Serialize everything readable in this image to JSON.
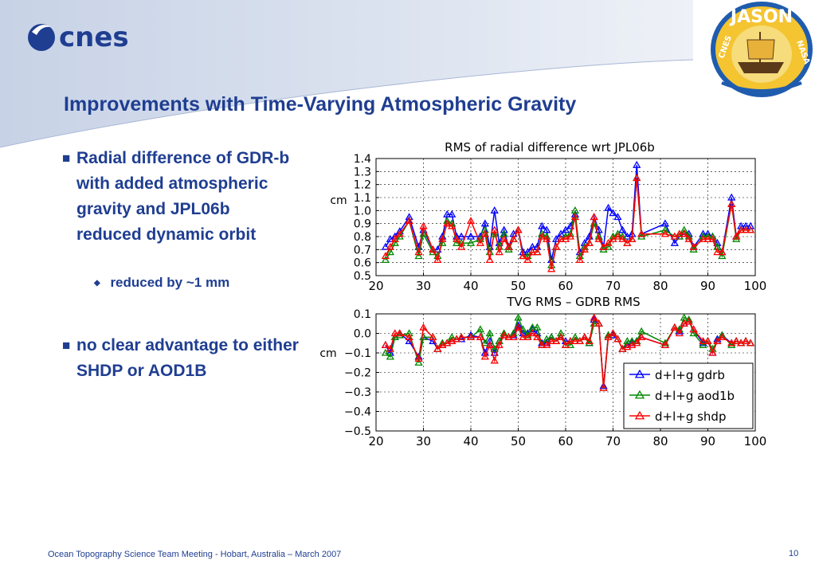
{
  "header": {
    "title": "Improvements with Time-Varying Atmospheric Gravity",
    "logo_left_text": "cnes",
    "logo_right_text": "JASON",
    "logo_right_left_text": "CNES",
    "logo_right_right_text": "NASA"
  },
  "bullets": [
    {
      "text": "Radial difference of GDR-b with added atmospheric gravity and JPL06b reduced dynamic orbit"
    },
    {
      "text": "no clear advantage to either SHDP or AOD1B"
    }
  ],
  "sub_bullet": {
    "text": "reduced by ~1 mm"
  },
  "footer": {
    "text": "Ocean Topography Science Team Meeting - Hobart, Australia – March 2007",
    "page": "10"
  },
  "colors": {
    "title": "#1f3e91",
    "gdrb": "#0000ff",
    "aod1b": "#008800",
    "shdp": "#ff0000"
  },
  "chart_data": [
    {
      "type": "line",
      "title": "RMS of radial difference wrt JPL06b",
      "xlabel": "",
      "ylabel": "cm",
      "xlim": [
        20,
        100
      ],
      "ylim": [
        0.5,
        1.4
      ],
      "xticks": [
        20,
        30,
        40,
        50,
        60,
        70,
        80,
        90,
        100
      ],
      "yticks": [
        0.5,
        0.6,
        0.7,
        0.8,
        0.9,
        1.0,
        1.1,
        1.2,
        1.3,
        1.4
      ],
      "ytick_labels": [
        "0.5",
        "0.6",
        "0.7",
        "0.8",
        "0.9",
        "1.0",
        "1.1",
        "1.2",
        "1.3",
        "1.4"
      ],
      "grid": true,
      "series": [
        {
          "name": "d+l+g gdrb",
          "color": "#0000ff",
          "x": [
            22,
            23,
            24,
            25,
            27,
            29,
            30,
            32,
            33,
            34,
            35,
            36,
            37,
            38,
            40,
            42,
            43,
            44,
            45,
            46,
            47,
            48,
            49,
            50,
            51,
            52,
            53,
            54,
            55,
            56,
            57,
            58,
            59,
            60,
            61,
            62,
            63,
            64,
            65,
            66,
            67,
            68,
            69,
            70,
            71,
            72,
            73,
            74,
            75,
            76,
            81,
            83,
            84,
            85,
            86,
            87,
            89,
            90,
            91,
            92,
            93,
            95,
            96,
            97,
            98,
            99
          ],
          "y": [
            0.72,
            0.78,
            0.8,
            0.84,
            0.95,
            0.72,
            0.85,
            0.7,
            0.7,
            0.8,
            0.97,
            0.97,
            0.8,
            0.8,
            0.8,
            0.8,
            0.9,
            0.72,
            1.0,
            0.75,
            0.85,
            0.72,
            0.82,
            0.85,
            0.68,
            0.68,
            0.72,
            0.72,
            0.88,
            0.85,
            0.62,
            0.78,
            0.82,
            0.85,
            0.88,
            0.97,
            0.68,
            0.75,
            0.8,
            0.95,
            0.85,
            0.72,
            1.02,
            0.98,
            0.95,
            0.85,
            0.8,
            0.82,
            1.35,
            0.82,
            0.9,
            0.75,
            0.8,
            0.82,
            0.82,
            0.72,
            0.82,
            0.82,
            0.8,
            0.75,
            0.68,
            1.1,
            0.8,
            0.88,
            0.88,
            0.88
          ]
        },
        {
          "name": "d+l+g aod1b",
          "color": "#008800",
          "x": [
            22,
            23,
            24,
            25,
            27,
            29,
            30,
            32,
            33,
            34,
            35,
            36,
            37,
            38,
            40,
            42,
            43,
            44,
            45,
            46,
            47,
            48,
            49,
            50,
            51,
            52,
            53,
            54,
            55,
            56,
            57,
            58,
            59,
            60,
            61,
            62,
            63,
            64,
            65,
            66,
            67,
            68,
            69,
            70,
            71,
            72,
            73,
            74,
            75,
            76,
            81,
            83,
            84,
            85,
            86,
            87,
            89,
            90,
            91,
            92,
            93,
            95,
            96,
            97,
            98,
            99
          ],
          "y": [
            0.62,
            0.68,
            0.75,
            0.8,
            0.92,
            0.65,
            0.82,
            0.68,
            0.65,
            0.75,
            0.92,
            0.9,
            0.75,
            0.75,
            0.75,
            0.78,
            0.85,
            0.68,
            0.82,
            0.72,
            0.82,
            0.7,
            0.78,
            0.85,
            0.65,
            0.65,
            0.68,
            0.68,
            0.82,
            0.8,
            0.58,
            0.72,
            0.78,
            0.8,
            0.82,
            1.0,
            0.65,
            0.72,
            0.75,
            0.9,
            0.8,
            0.7,
            0.72,
            0.8,
            0.82,
            0.8,
            0.75,
            0.78,
            1.25,
            0.8,
            0.85,
            0.8,
            0.8,
            0.85,
            0.8,
            0.7,
            0.8,
            0.8,
            0.8,
            0.72,
            0.65,
            1.05,
            0.78,
            0.85,
            0.85,
            0.85
          ]
        },
        {
          "name": "d+l+g shdp",
          "color": "#ff0000",
          "x": [
            22,
            23,
            24,
            25,
            27,
            29,
            30,
            32,
            33,
            34,
            35,
            36,
            37,
            38,
            40,
            42,
            43,
            44,
            45,
            46,
            47,
            48,
            49,
            50,
            51,
            52,
            53,
            54,
            55,
            56,
            57,
            58,
            59,
            60,
            61,
            62,
            63,
            64,
            65,
            66,
            67,
            68,
            69,
            70,
            71,
            72,
            73,
            74,
            75,
            76,
            81,
            83,
            84,
            85,
            86,
            87,
            89,
            90,
            91,
            92,
            93,
            95,
            96,
            97,
            98,
            99
          ],
          "y": [
            0.65,
            0.72,
            0.78,
            0.82,
            0.92,
            0.68,
            0.88,
            0.7,
            0.62,
            0.78,
            0.9,
            0.88,
            0.78,
            0.72,
            0.92,
            0.75,
            0.82,
            0.62,
            0.85,
            0.68,
            0.78,
            0.72,
            0.78,
            0.85,
            0.65,
            0.62,
            0.68,
            0.68,
            0.8,
            0.78,
            0.55,
            0.72,
            0.78,
            0.78,
            0.8,
            0.95,
            0.62,
            0.7,
            0.75,
            0.95,
            0.78,
            0.72,
            0.75,
            0.78,
            0.8,
            0.78,
            0.75,
            0.78,
            1.25,
            0.82,
            0.82,
            0.8,
            0.82,
            0.82,
            0.78,
            0.72,
            0.78,
            0.78,
            0.78,
            0.68,
            0.68,
            1.05,
            0.8,
            0.85,
            0.85,
            0.85
          ]
        }
      ]
    },
    {
      "type": "line",
      "title": "TVG RMS – GDRB RMS",
      "xlabel": "",
      "ylabel": "cm",
      "xlim": [
        20,
        100
      ],
      "ylim": [
        -0.5,
        0.1
      ],
      "xticks": [
        20,
        30,
        40,
        50,
        60,
        70,
        80,
        90,
        100
      ],
      "yticks": [
        -0.5,
        -0.4,
        -0.3,
        -0.2,
        -0.1,
        0.0,
        0.1
      ],
      "ytick_labels": [
        "−0.5",
        "−0.4",
        "−0.3",
        "−0.2",
        "−0.1",
        "0.0",
        "0.1"
      ],
      "grid": true,
      "legend": "bottom-right",
      "series": [
        {
          "name": "d+l+g gdrb",
          "color": "#0000ff",
          "x": [
            22,
            23,
            24,
            25,
            27,
            29,
            30,
            32,
            33,
            34,
            35,
            36,
            37,
            38,
            40,
            42,
            43,
            44,
            45,
            46,
            47,
            48,
            49,
            50,
            51,
            52,
            53,
            54,
            55,
            56,
            57,
            58,
            59,
            60,
            61,
            62,
            63,
            64,
            65,
            66,
            67,
            68,
            69,
            70,
            71,
            72,
            73,
            74,
            75,
            76,
            81,
            83,
            84,
            85,
            86,
            87,
            89,
            90,
            91,
            92,
            93,
            95,
            96,
            97,
            98,
            99
          ],
          "y": [
            -0.06,
            -0.1,
            -0.02,
            0.0,
            -0.04,
            -0.12,
            -0.02,
            -0.04,
            -0.08,
            -0.06,
            -0.05,
            -0.04,
            -0.03,
            -0.03,
            -0.01,
            -0.02,
            -0.1,
            -0.04,
            -0.1,
            -0.04,
            -0.01,
            -0.02,
            -0.01,
            0.04,
            0.0,
            0.0,
            0.02,
            0.0,
            -0.05,
            -0.05,
            -0.02,
            -0.04,
            -0.02,
            -0.04,
            -0.04,
            -0.04,
            -0.04,
            -0.02,
            -0.05,
            0.07,
            0.05,
            -0.27,
            -0.01,
            -0.01,
            -0.03,
            -0.08,
            -0.06,
            -0.05,
            -0.04,
            -0.02,
            -0.06,
            0.03,
            0.01,
            0.05,
            0.06,
            0.02,
            -0.05,
            -0.04,
            -0.1,
            -0.03,
            -0.01,
            -0.05,
            -0.04,
            -0.05,
            -0.04,
            -0.05
          ]
        },
        {
          "name": "d+l+g aod1b",
          "color": "#008800",
          "x": [
            22,
            23,
            24,
            25,
            27,
            29,
            30,
            32,
            33,
            34,
            35,
            36,
            37,
            38,
            40,
            42,
            43,
            44,
            45,
            46,
            47,
            48,
            49,
            50,
            51,
            52,
            53,
            54,
            55,
            56,
            57,
            58,
            59,
            60,
            61,
            62,
            63,
            64,
            65,
            66,
            67,
            68,
            69,
            70,
            71,
            72,
            73,
            74,
            75,
            76,
            81,
            83,
            84,
            85,
            86,
            87,
            89,
            90,
            91,
            92,
            93,
            95,
            96,
            97,
            98,
            99
          ],
          "y": [
            -0.1,
            -0.12,
            -0.02,
            -0.01,
            0.0,
            -0.15,
            -0.02,
            -0.02,
            -0.08,
            -0.05,
            -0.05,
            -0.02,
            -0.03,
            -0.02,
            -0.02,
            0.02,
            -0.05,
            0.0,
            -0.08,
            -0.04,
            0.0,
            -0.02,
            0.0,
            0.08,
            0.02,
            -0.01,
            0.03,
            0.03,
            -0.06,
            -0.03,
            -0.02,
            -0.04,
            0.0,
            -0.06,
            -0.06,
            -0.02,
            -0.04,
            -0.02,
            -0.05,
            0.05,
            0.05,
            -0.28,
            -0.01,
            0.0,
            -0.03,
            -0.08,
            -0.04,
            -0.04,
            -0.04,
            0.01,
            -0.05,
            0.03,
            0.02,
            0.08,
            0.07,
            0.0,
            -0.06,
            -0.04,
            -0.08,
            -0.04,
            -0.01,
            -0.06,
            -0.04,
            -0.05,
            -0.04,
            -0.05
          ]
        },
        {
          "name": "d+l+g shdp",
          "color": "#ff0000",
          "x": [
            22,
            23,
            24,
            25,
            27,
            29,
            30,
            32,
            33,
            34,
            35,
            36,
            37,
            38,
            40,
            42,
            43,
            44,
            45,
            46,
            47,
            48,
            49,
            50,
            51,
            52,
            53,
            54,
            55,
            56,
            57,
            58,
            59,
            60,
            61,
            62,
            63,
            64,
            65,
            66,
            67,
            68,
            69,
            70,
            71,
            72,
            73,
            74,
            75,
            76,
            81,
            83,
            84,
            85,
            86,
            87,
            89,
            90,
            91,
            92,
            93,
            95,
            96,
            97,
            98,
            99
          ],
          "y": [
            -0.06,
            -0.08,
            0.0,
            0.0,
            -0.02,
            -0.13,
            0.03,
            -0.02,
            -0.08,
            -0.06,
            -0.05,
            -0.04,
            -0.03,
            -0.02,
            -0.02,
            -0.02,
            -0.12,
            -0.06,
            -0.14,
            -0.06,
            -0.01,
            -0.02,
            -0.02,
            0.03,
            -0.02,
            -0.02,
            0.0,
            -0.02,
            -0.06,
            -0.06,
            -0.04,
            -0.04,
            -0.02,
            -0.06,
            -0.04,
            -0.04,
            -0.04,
            -0.02,
            -0.04,
            0.08,
            0.05,
            -0.28,
            -0.02,
            0.0,
            -0.03,
            -0.08,
            -0.07,
            -0.06,
            -0.05,
            -0.02,
            -0.06,
            0.03,
            0.0,
            0.05,
            0.06,
            0.02,
            -0.04,
            -0.04,
            -0.1,
            -0.04,
            -0.02,
            -0.05,
            -0.04,
            -0.05,
            -0.04,
            -0.05
          ]
        }
      ]
    }
  ]
}
